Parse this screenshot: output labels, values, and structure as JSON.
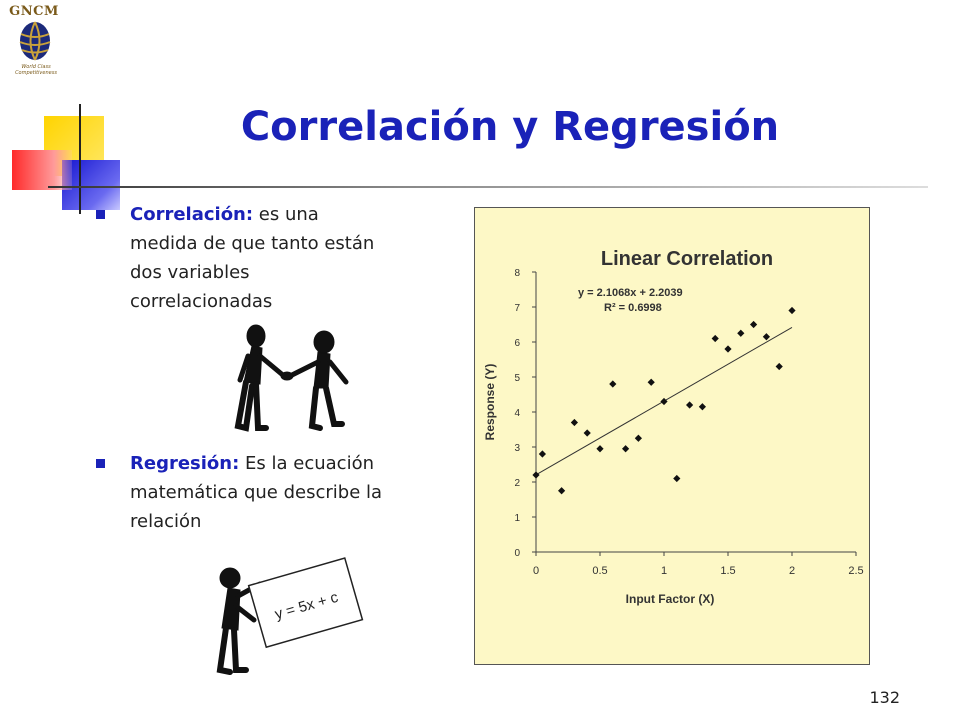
{
  "logo": {
    "brand": "GNCM",
    "tagline": "World Class Competitiveness"
  },
  "slide": {
    "title": "Correlación y Regresión",
    "bullets": [
      {
        "term": "Correlación:",
        "text": " es una medida de que tanto están  dos variables correlacionadas"
      },
      {
        "term": "Regresión:",
        "text": " Es la ecuación matemática que describe la relación"
      }
    ],
    "equation_card": "y = 5x + c",
    "page_number": "132"
  },
  "colors": {
    "title": "#1a22b8",
    "chart_bg": "#fdf8c6"
  },
  "chart_data": {
    "type": "scatter",
    "title": "Linear Correlation",
    "equation": "y = 2.1068x + 2.2039",
    "r_squared": "R² = 0.6998",
    "xlabel": "Input Factor (X)",
    "ylabel": "Response (Y)",
    "xlim": [
      0,
      2.5
    ],
    "ylim": [
      0,
      8
    ],
    "xticks": [
      "0",
      "0.5",
      "1",
      "1.5",
      "2",
      "2.5"
    ],
    "yticks": [
      "0",
      "1",
      "2",
      "3",
      "4",
      "5",
      "6",
      "7",
      "8"
    ],
    "trendline": {
      "slope": 2.1068,
      "intercept": 2.2039
    },
    "points": [
      [
        0.0,
        2.2
      ],
      [
        0.05,
        2.8
      ],
      [
        0.2,
        1.75
      ],
      [
        0.3,
        3.7
      ],
      [
        0.4,
        3.4
      ],
      [
        0.5,
        2.95
      ],
      [
        0.6,
        4.8
      ],
      [
        0.7,
        2.95
      ],
      [
        0.8,
        3.25
      ],
      [
        0.9,
        4.85
      ],
      [
        1.0,
        4.3
      ],
      [
        1.1,
        2.1
      ],
      [
        1.2,
        4.2
      ],
      [
        1.3,
        4.15
      ],
      [
        1.4,
        6.1
      ],
      [
        1.5,
        5.8
      ],
      [
        1.6,
        6.25
      ],
      [
        1.7,
        6.5
      ],
      [
        1.8,
        6.15
      ],
      [
        1.9,
        5.3
      ],
      [
        2.0,
        6.9
      ]
    ]
  }
}
